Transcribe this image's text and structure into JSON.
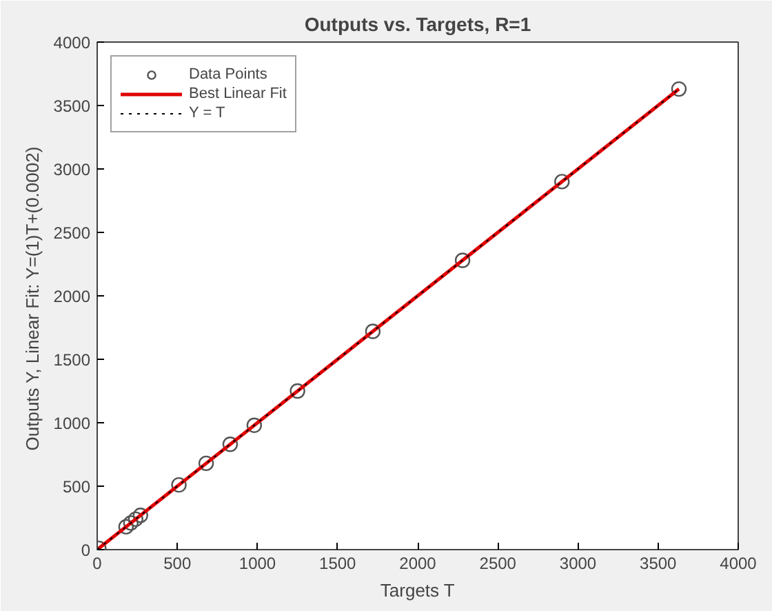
{
  "chart_data": {
    "type": "scatter",
    "title": "Outputs vs. Targets, R=1",
    "xlabel": "Targets T",
    "ylabel": "Outputs Y,  Linear Fit: Y=(1)T+(0.0002)",
    "xlim": [
      0,
      4000
    ],
    "ylim": [
      0,
      4000
    ],
    "xticks": [
      0,
      500,
      1000,
      1500,
      2000,
      2500,
      3000,
      3500,
      4000
    ],
    "yticks": [
      0,
      500,
      1000,
      1500,
      2000,
      2500,
      3000,
      3500,
      4000
    ],
    "grid": false,
    "legend": "top left",
    "series": [
      {
        "name": "Data Points",
        "marker": "circle",
        "color": "#555555",
        "x": [
          10,
          180,
          210,
          240,
          270,
          510,
          680,
          830,
          980,
          1250,
          1720,
          2280,
          2900,
          3630
        ],
        "values": [
          10,
          180,
          210,
          240,
          270,
          510,
          680,
          830,
          980,
          1250,
          1720,
          2280,
          2900,
          3630
        ]
      },
      {
        "name": "Best Linear Fit",
        "type": "line",
        "line_style": "solid",
        "color": "#e00000",
        "x": [
          0,
          3630
        ],
        "values": [
          0,
          3630
        ]
      },
      {
        "name": "Y = T",
        "type": "line",
        "line_style": "dotted",
        "color": "#000000",
        "x": [
          0,
          3630
        ],
        "values": [
          0,
          3630
        ]
      }
    ]
  }
}
